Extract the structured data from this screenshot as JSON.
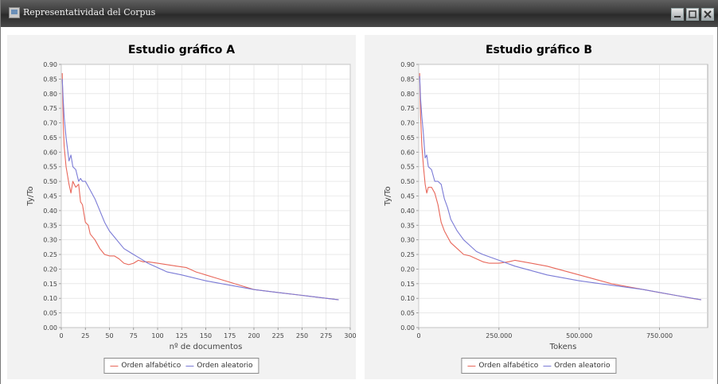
{
  "window": {
    "title": "Representatividad del Corpus",
    "controls": [
      "minimize-icon",
      "maximize-icon",
      "close-icon"
    ]
  },
  "colors": {
    "series_alfabetico": "#e8675a",
    "series_aleatorio": "#7b7bd6",
    "grid": "#dcdcdc",
    "plot_bg": "#ffffff"
  },
  "chart_data": [
    {
      "type": "line",
      "title": "Estudio gráfico A",
      "xlabel": "nº de documentos",
      "ylabel": "Ty/To",
      "xlim": [
        0,
        300
      ],
      "ylim": [
        0,
        0.9
      ],
      "xticks": [
        0,
        25,
        50,
        75,
        100,
        125,
        150,
        175,
        200,
        225,
        250,
        275,
        300
      ],
      "xtick_labels": [
        "0",
        "25",
        "50",
        "75",
        "100",
        "125",
        "150",
        "175",
        "200",
        "225",
        "250",
        "275",
        "300"
      ],
      "yticks": [
        0,
        0.05,
        0.1,
        0.15,
        0.2,
        0.25,
        0.3,
        0.35,
        0.4,
        0.45,
        0.5,
        0.55,
        0.6,
        0.65,
        0.7,
        0.75,
        0.8,
        0.85,
        0.9
      ],
      "ytick_labels": [
        "0.00",
        "0.05",
        "0.10",
        "0.15",
        "0.20",
        "0.25",
        "0.30",
        "0.35",
        "0.40",
        "0.45",
        "0.50",
        "0.55",
        "0.60",
        "0.65",
        "0.70",
        "0.75",
        "0.80",
        "0.85",
        "0.90"
      ],
      "grid": true,
      "legend_position": "bottom",
      "series": [
        {
          "name": "Orden alfabético",
          "color_key": "series_alfabetico",
          "x": [
            1,
            2,
            3,
            5,
            8,
            10,
            12,
            15,
            18,
            20,
            22,
            25,
            28,
            30,
            35,
            40,
            45,
            50,
            55,
            60,
            65,
            70,
            75,
            80,
            85,
            90,
            100,
            110,
            120,
            130,
            140,
            150,
            160,
            175,
            190,
            200,
            225,
            250,
            275,
            288
          ],
          "y": [
            0.87,
            0.7,
            0.62,
            0.55,
            0.49,
            0.46,
            0.5,
            0.48,
            0.49,
            0.43,
            0.42,
            0.36,
            0.35,
            0.32,
            0.3,
            0.27,
            0.25,
            0.245,
            0.245,
            0.235,
            0.22,
            0.215,
            0.22,
            0.23,
            0.225,
            0.225,
            0.22,
            0.215,
            0.21,
            0.205,
            0.19,
            0.18,
            0.17,
            0.155,
            0.14,
            0.13,
            0.12,
            0.11,
            0.1,
            0.095
          ]
        },
        {
          "name": "Orden aleatorio",
          "color_key": "series_aleatorio",
          "x": [
            1,
            2,
            3,
            5,
            8,
            10,
            12,
            15,
            18,
            20,
            22,
            25,
            30,
            35,
            40,
            45,
            50,
            55,
            60,
            65,
            70,
            75,
            80,
            90,
            100,
            110,
            125,
            150,
            175,
            200,
            225,
            250,
            275,
            288
          ],
          "y": [
            0.85,
            0.78,
            0.72,
            0.65,
            0.57,
            0.59,
            0.55,
            0.54,
            0.5,
            0.51,
            0.5,
            0.5,
            0.47,
            0.44,
            0.4,
            0.36,
            0.33,
            0.31,
            0.29,
            0.27,
            0.26,
            0.25,
            0.24,
            0.22,
            0.205,
            0.19,
            0.18,
            0.16,
            0.145,
            0.13,
            0.12,
            0.11,
            0.1,
            0.095
          ]
        }
      ]
    },
    {
      "type": "line",
      "title": "Estudio gráfico B",
      "xlabel": "Tokens",
      "ylabel": "Ty/To",
      "xlim": [
        0,
        900000
      ],
      "ylim": [
        0,
        0.9
      ],
      "xticks": [
        0,
        250000,
        500000,
        750000
      ],
      "xtick_labels": [
        "0",
        "250.000",
        "500.000",
        "750.000"
      ],
      "yticks": [
        0,
        0.05,
        0.1,
        0.15,
        0.2,
        0.25,
        0.3,
        0.35,
        0.4,
        0.45,
        0.5,
        0.55,
        0.6,
        0.65,
        0.7,
        0.75,
        0.8,
        0.85,
        0.9
      ],
      "ytick_labels": [
        "0.00",
        "0.05",
        "0.10",
        "0.15",
        "0.20",
        "0.25",
        "0.30",
        "0.35",
        "0.40",
        "0.45",
        "0.50",
        "0.55",
        "0.60",
        "0.65",
        "0.70",
        "0.75",
        "0.80",
        "0.85",
        "0.90"
      ],
      "grid": true,
      "legend_position": "bottom",
      "series": [
        {
          "name": "Orden alfabético",
          "color_key": "series_alfabetico",
          "x": [
            3000,
            6000,
            10000,
            15000,
            20000,
            25000,
            30000,
            40000,
            50000,
            60000,
            70000,
            80000,
            90000,
            100000,
            120000,
            140000,
            160000,
            180000,
            200000,
            220000,
            250000,
            280000,
            300000,
            350000,
            400000,
            450000,
            500000,
            550000,
            600000,
            650000,
            700000,
            750000,
            800000,
            850000,
            880000
          ],
          "y": [
            0.87,
            0.72,
            0.62,
            0.55,
            0.49,
            0.46,
            0.48,
            0.48,
            0.46,
            0.42,
            0.36,
            0.33,
            0.31,
            0.29,
            0.27,
            0.25,
            0.245,
            0.235,
            0.225,
            0.22,
            0.22,
            0.225,
            0.23,
            0.22,
            0.21,
            0.195,
            0.18,
            0.165,
            0.15,
            0.14,
            0.13,
            0.12,
            0.11,
            0.1,
            0.095
          ]
        },
        {
          "name": "Orden aleatorio",
          "color_key": "series_aleatorio",
          "x": [
            3000,
            6000,
            10000,
            15000,
            20000,
            25000,
            30000,
            40000,
            50000,
            60000,
            70000,
            80000,
            90000,
            100000,
            120000,
            140000,
            160000,
            180000,
            200000,
            250000,
            300000,
            350000,
            400000,
            500000,
            600000,
            700000,
            800000,
            880000
          ],
          "y": [
            0.86,
            0.78,
            0.72,
            0.66,
            0.58,
            0.59,
            0.55,
            0.54,
            0.5,
            0.5,
            0.49,
            0.44,
            0.41,
            0.37,
            0.33,
            0.3,
            0.28,
            0.26,
            0.25,
            0.23,
            0.21,
            0.195,
            0.18,
            0.16,
            0.145,
            0.13,
            0.11,
            0.095
          ]
        }
      ]
    }
  ]
}
